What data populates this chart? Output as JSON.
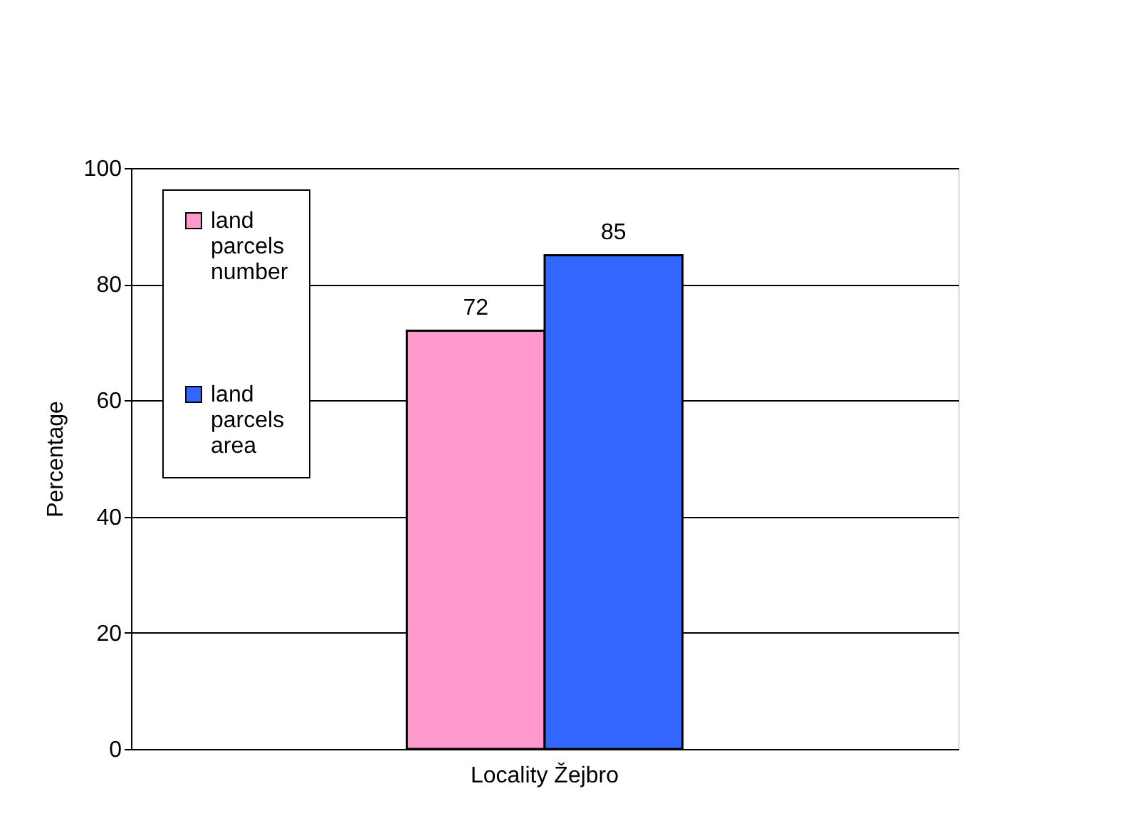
{
  "chart_data": {
    "type": "bar",
    "categories": [
      "Locality Žejbro"
    ],
    "ylabel": "Percentage",
    "series": [
      {
        "name": "land parcels number",
        "color": "#ff99cc",
        "values": [
          72
        ]
      },
      {
        "name": "land parcels area",
        "color": "#3366ff",
        "values": [
          85
        ]
      }
    ],
    "ylim": [
      0,
      100
    ],
    "yticks": [
      0,
      20,
      40,
      60,
      80,
      100
    ],
    "grid": "y",
    "legend": "left",
    "data_labels": true
  }
}
